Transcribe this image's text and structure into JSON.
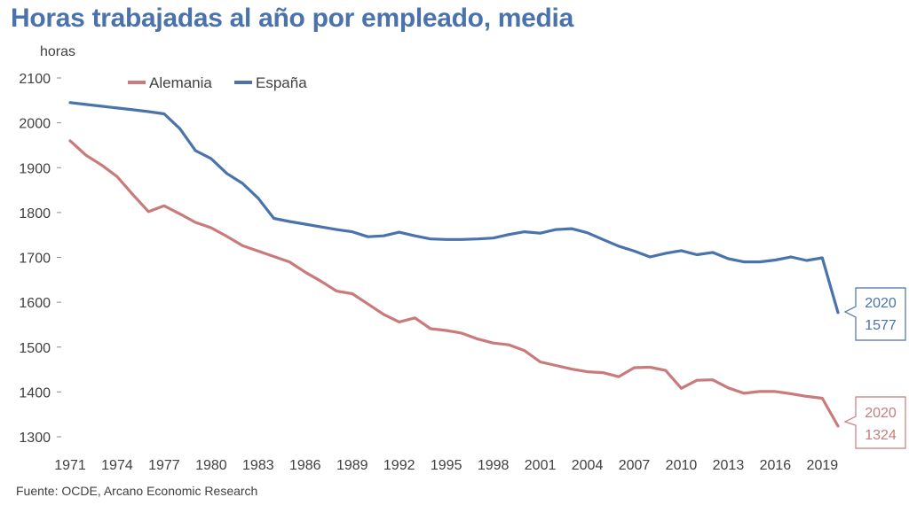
{
  "title": "Horas trabajadas al año por empleado, media",
  "source": "Fuente: OCDE, Arcano Economic Research",
  "chart_data": {
    "type": "line",
    "title": "Horas trabajadas al año por empleado, media",
    "ylabel": "horas",
    "ylim": [
      1300,
      2100
    ],
    "yticks": [
      1300,
      1400,
      1500,
      1600,
      1700,
      1800,
      1900,
      2000,
      2100
    ],
    "xlim": [
      1971,
      2020
    ],
    "xticks": [
      1971,
      1974,
      1977,
      1980,
      1983,
      1986,
      1989,
      1992,
      1995,
      1998,
      2001,
      2004,
      2007,
      2010,
      2013,
      2016,
      2019
    ],
    "legend_position": "top-left",
    "grid": false,
    "x": [
      1971,
      1972,
      1973,
      1974,
      1975,
      1976,
      1977,
      1978,
      1979,
      1980,
      1981,
      1982,
      1983,
      1984,
      1985,
      1986,
      1987,
      1988,
      1989,
      1990,
      1991,
      1992,
      1993,
      1994,
      1995,
      1996,
      1997,
      1998,
      1999,
      2000,
      2001,
      2002,
      2003,
      2004,
      2005,
      2006,
      2007,
      2008,
      2009,
      2010,
      2011,
      2012,
      2013,
      2014,
      2015,
      2016,
      2017,
      2018,
      2019,
      2020
    ],
    "series": [
      {
        "name": "Alemania",
        "color": "#c97b7b",
        "values": [
          1960,
          1928,
          1906,
          1880,
          1840,
          1802,
          1815,
          1797,
          1778,
          1766,
          1747,
          1726,
          1714,
          1702,
          1690,
          1667,
          1647,
          1625,
          1619,
          1596,
          1573,
          1556,
          1565,
          1541,
          1537,
          1531,
          1518,
          1509,
          1505,
          1492,
          1467,
          1459,
          1451,
          1445,
          1443,
          1434,
          1454,
          1455,
          1448,
          1408,
          1426,
          1427,
          1409,
          1397,
          1401,
          1401,
          1396,
          1390,
          1386,
          1324
        ]
      },
      {
        "name": "España",
        "color": "#4a72ad",
        "values": [
          2045,
          2041,
          2037,
          2033,
          2029,
          2025,
          2020,
          1987,
          1938,
          1920,
          1887,
          1865,
          1832,
          1787,
          1780,
          1774,
          1768,
          1762,
          1757,
          1746,
          1748,
          1756,
          1748,
          1741,
          1740,
          1740,
          1741,
          1743,
          1751,
          1757,
          1754,
          1762,
          1764,
          1755,
          1740,
          1725,
          1714,
          1701,
          1709,
          1715,
          1706,
          1711,
          1697,
          1690,
          1690,
          1694,
          1701,
          1693,
          1699,
          1577
        ]
      }
    ],
    "annotations": [
      {
        "series": "España",
        "year": "2020",
        "value": "1577",
        "color": "#4a72ad"
      },
      {
        "series": "Alemania",
        "year": "2020",
        "value": "1324",
        "color": "#c97b7b"
      }
    ]
  }
}
